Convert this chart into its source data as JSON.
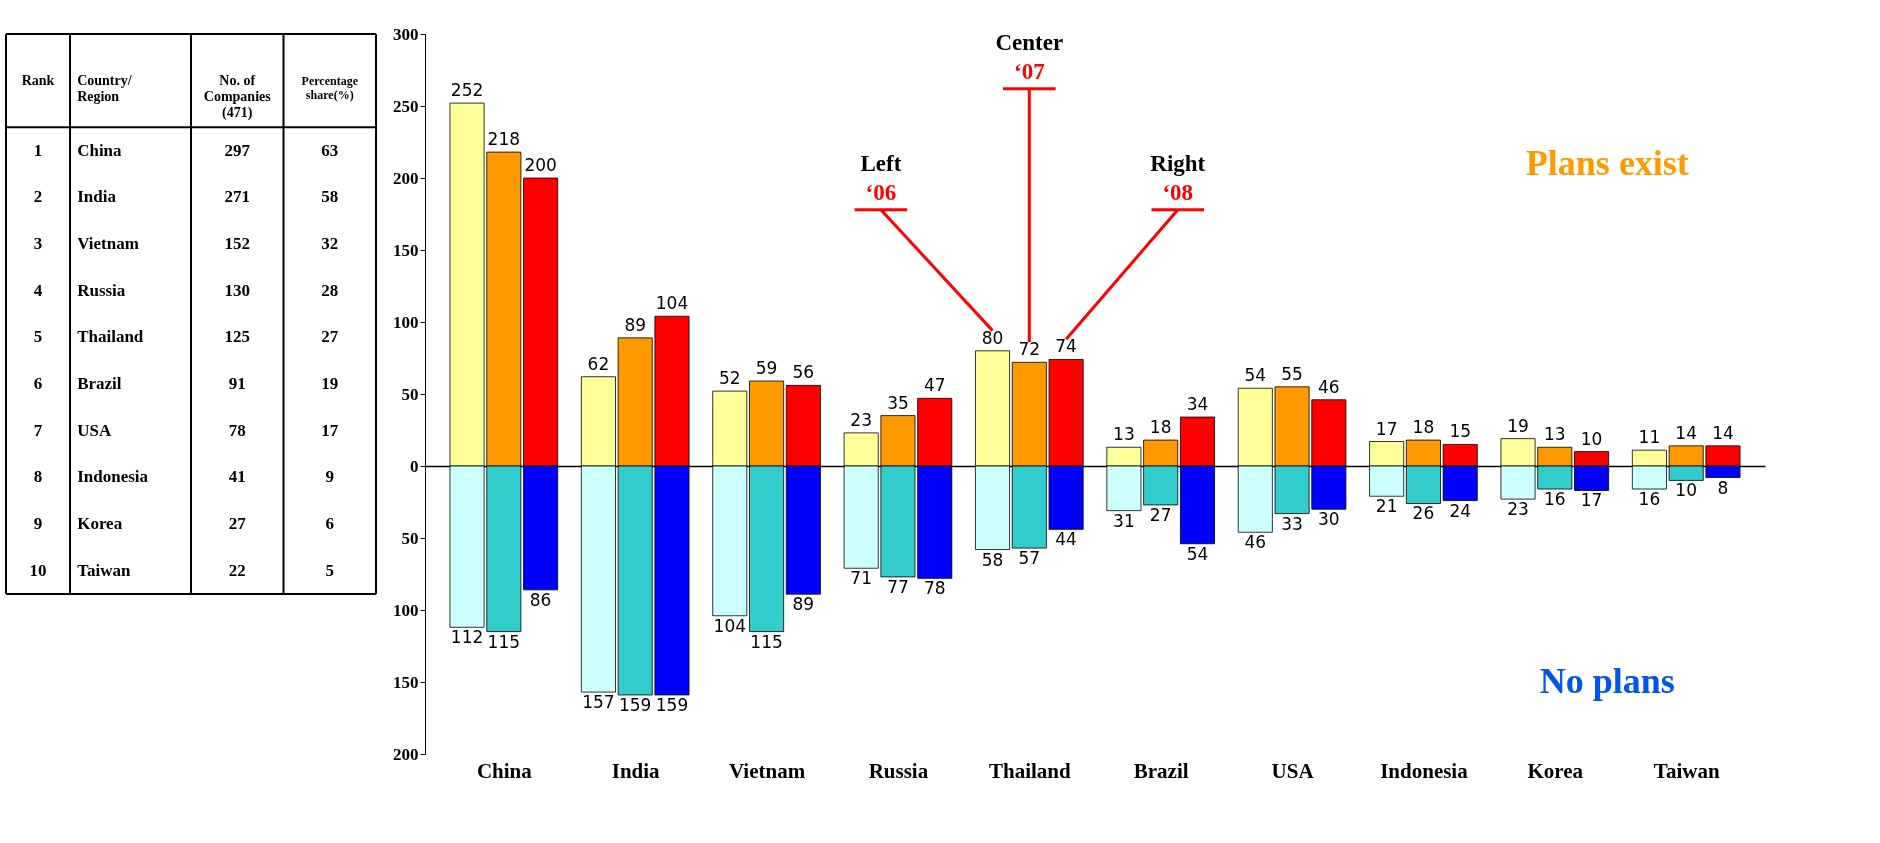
{
  "chart_data": [
    {
      "type": "heatmap",
      "categories": [
        "Rank",
        "No. of Companies (471)",
        "Percentage share(%)"
      ],
      "ylabel": "Country/ Region",
      "y_categories": [
        "China",
        "India",
        "Vietnam",
        "Russia",
        "Thailand",
        "Brazil",
        "USA",
        "Indonesia",
        "Korea",
        "Taiwan"
      ],
      "cells": [
        [
          1,
          297,
          63
        ],
        [
          2,
          271,
          58
        ],
        [
          3,
          152,
          32
        ],
        [
          4,
          130,
          28
        ],
        [
          5,
          125,
          27
        ],
        [
          6,
          91,
          19
        ],
        [
          7,
          78,
          17
        ],
        [
          8,
          41,
          9
        ],
        [
          9,
          27,
          6
        ],
        [
          10,
          22,
          5
        ]
      ],
      "data_labels": true
    },
    {
      "type": "bar",
      "categories": [
        null,
        null,
        null,
        null,
        null,
        null,
        null,
        null,
        null,
        null
      ],
      "series": [
        {
          "color": "#ffff99",
          "values": [
            252,
            62,
            52,
            23,
            80,
            13,
            54,
            17,
            19,
            11
          ]
        },
        {
          "color": "#ff9900",
          "values": [
            218,
            89,
            59,
            35,
            72,
            18,
            55,
            18,
            13,
            14
          ]
        },
        {
          "color": "#ff0000",
          "values": [
            200,
            104,
            56,
            47,
            74,
            34,
            46,
            15,
            10,
            14
          ]
        }
      ],
      "data_labels": true,
      "ylim": [
        0,
        300
      ],
      "yticks": [
        0,
        50,
        100,
        150,
        200,
        250,
        300
      ],
      "tick_labels": "y",
      "annotations": [
        "Left",
        "‘06",
        "Center",
        "‘07",
        "Right",
        "‘08",
        "Plans exist"
      ]
    },
    {
      "type": "bar",
      "categories": [
        "China",
        "India",
        "Vietnam",
        "Russia",
        "Thailand",
        "Brazil",
        "USA",
        "Indonesia",
        "Korea",
        "Taiwan"
      ],
      "series": [
        {
          "color": "#ccffff",
          "values": [
            112,
            157,
            104,
            71,
            58,
            31,
            46,
            21,
            23,
            16
          ]
        },
        {
          "color": "#33cccc",
          "values": [
            115,
            159,
            115,
            77,
            57,
            27,
            33,
            26,
            16,
            10
          ]
        },
        {
          "color": "#0000ff",
          "values": [
            86,
            159,
            89,
            78,
            44,
            54,
            30,
            24,
            17,
            8
          ]
        }
      ],
      "data_labels": true,
      "ylim": [
        200,
        0
      ],
      "yticks": [
        50,
        100,
        150,
        200
      ],
      "annotations": [
        "No plans"
      ]
    }
  ]
}
